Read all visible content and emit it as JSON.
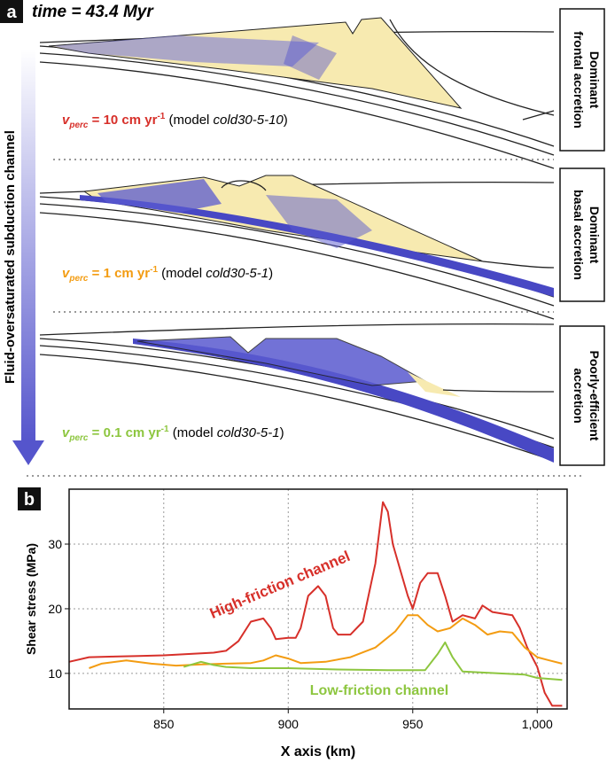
{
  "panel_a": {
    "label": "a",
    "time": "time = 43.4 Myr",
    "arrow_label": "Fluid-oversaturated subduction channel",
    "models": [
      {
        "v": "v",
        "sub": "perc",
        "rate": " = 10 cm yr",
        "sup": "-1",
        "model_prefix": " (model ",
        "model": "cold30-5-10",
        "model_suffix": ")",
        "color": "#d7302a",
        "regime": [
          "Dominant",
          "frontal accretion"
        ]
      },
      {
        "v": "v",
        "sub": "perc",
        "rate": " = 1 cm yr",
        "sup": "-1",
        "model_prefix": " (model ",
        "model": "cold30-5-1",
        "model_suffix": ")",
        "color": "#f39c12",
        "regime": [
          "Dominant",
          "basal accretion"
        ]
      },
      {
        "v": "v",
        "sub": "perc",
        "rate": " = 0.1 cm yr",
        "sup": "-1",
        "model_prefix": " (model ",
        "model": "cold30-5-1",
        "model_suffix": ")",
        "color": "#8dc63f",
        "regime": [
          "Poorly-efficient",
          "accretion"
        ]
      }
    ]
  },
  "chart_data": {
    "type": "line",
    "label": "b",
    "x_label": "X axis (km)",
    "y_label": "Shear stress (MPa)",
    "annotations": [
      {
        "text": "High-friction channel",
        "color": "#d7302a"
      },
      {
        "text": "Low-friction channel",
        "color": "#8dc63f"
      }
    ],
    "xlim": [
      812,
      1012
    ],
    "ylim": [
      4.5,
      38.5
    ],
    "xticks": [
      850,
      900,
      950,
      {
        "value": 1000,
        "label": "1,000"
      }
    ],
    "yticks": [
      10,
      20,
      30
    ],
    "grid": true,
    "series": [
      {
        "color": "#d7302a",
        "x": [
          812,
          820,
          830,
          840,
          850,
          860,
          870,
          875,
          880,
          885,
          890,
          893,
          895,
          900,
          903,
          905,
          908,
          912,
          915,
          918,
          920,
          925,
          930,
          935,
          938,
          940,
          942,
          945,
          948,
          950,
          953,
          956,
          960,
          963,
          966,
          970,
          975,
          978,
          982,
          985,
          990,
          993,
          996,
          1000,
          1003,
          1006,
          1010
        ],
        "values": [
          11.8,
          12.5,
          12.6,
          12.7,
          12.8,
          13,
          13.2,
          13.5,
          15,
          18,
          18.5,
          17,
          15.3,
          15.5,
          15.5,
          17,
          22,
          23.5,
          22,
          17,
          16,
          16,
          18,
          27,
          36.5,
          35,
          30,
          26,
          22,
          20,
          24,
          25.5,
          25.5,
          22,
          18,
          19,
          18.5,
          20.5,
          19.5,
          19.3,
          19,
          17,
          14,
          11,
          7,
          5,
          5
        ]
      },
      {
        "color": "#f39c12",
        "x": [
          820,
          825,
          835,
          845,
          855,
          865,
          875,
          885,
          890,
          895,
          900,
          905,
          915,
          925,
          935,
          943,
          948,
          952,
          956,
          960,
          965,
          970,
          975,
          980,
          985,
          990,
          995,
          1000,
          1005,
          1010
        ],
        "values": [
          10.8,
          11.5,
          12,
          11.5,
          11.2,
          11.4,
          11.5,
          11.6,
          12,
          12.8,
          12.3,
          11.6,
          11.8,
          12.5,
          14,
          16.5,
          19,
          19,
          17.5,
          16.5,
          17,
          18.5,
          17.5,
          16,
          16.5,
          16.3,
          14,
          12.5,
          12,
          11.5
        ]
      },
      {
        "color": "#8dc63f",
        "x": [
          858,
          865,
          870,
          875,
          885,
          900,
          920,
          940,
          955,
          960,
          963,
          966,
          970,
          985,
          995,
          1000,
          1010
        ],
        "values": [
          11,
          11.8,
          11.3,
          11,
          10.8,
          10.8,
          10.6,
          10.5,
          10.5,
          13,
          14.8,
          12.5,
          10.3,
          10,
          9.8,
          9.3,
          9
        ]
      }
    ]
  }
}
